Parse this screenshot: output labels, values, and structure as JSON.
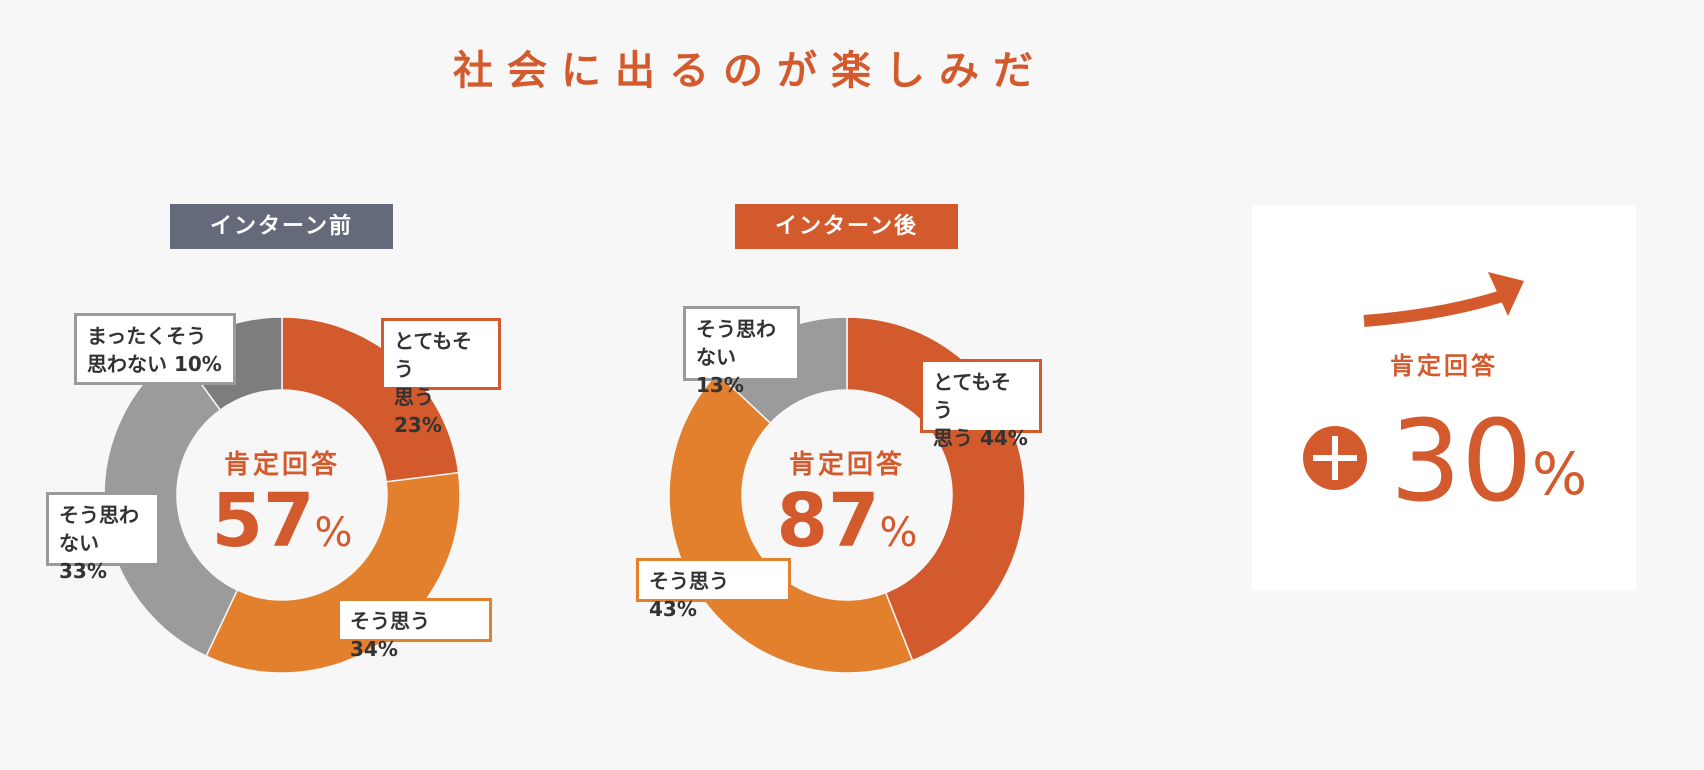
{
  "title": "社会に出るのが楽しみだ",
  "colors": {
    "accent": "#d35a2d",
    "orange": "#e2802e",
    "gray": "#9b9b9b",
    "dark_gray": "#7d7d7d",
    "badge_gray": "#646a7a"
  },
  "chart_data": [
    {
      "type": "pie",
      "title": "インターン前",
      "center_caption": "肯定回答",
      "center_value": "57",
      "center_unit": "%",
      "slices": [
        {
          "label": "とてもそう\n思う 23%",
          "value": 23,
          "color": "#d35a2d"
        },
        {
          "label": "そう思う 34%",
          "value": 34,
          "color": "#e2802e"
        },
        {
          "label": "そう思わ\nない 33%",
          "value": 33,
          "color": "#9b9b9b"
        },
        {
          "label": "まったくそう\n思わない 10%",
          "value": 10,
          "color": "#7d7d7d"
        }
      ]
    },
    {
      "type": "pie",
      "title": "インターン後",
      "center_caption": "肯定回答",
      "center_value": "87",
      "center_unit": "%",
      "slices": [
        {
          "label": "とてもそう\n思う 44%",
          "value": 44,
          "color": "#d35a2d"
        },
        {
          "label": "そう思う 43%",
          "value": 43,
          "color": "#e2802e"
        },
        {
          "label": "そう思わ\nない 13%",
          "value": 13,
          "color": "#9b9b9b"
        }
      ]
    }
  ],
  "summary": {
    "caption": "肯定回答",
    "value": "30",
    "unit": "%",
    "sign": "plus"
  }
}
